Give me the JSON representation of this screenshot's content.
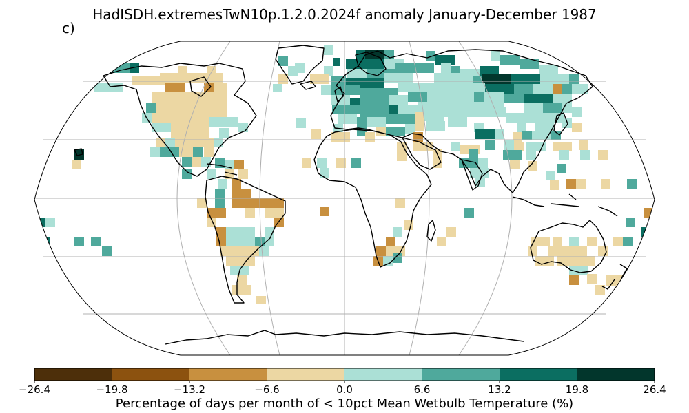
{
  "title": "HadISDH.extremesTwN10p.1.2.0.2024f anomaly January-December 1987",
  "panel_label": "c)",
  "colorbar": {
    "label": "Percentage of days per month of < 10pct Mean Wetbulb Temperature (%)",
    "ticks": [
      "−26.4",
      "−19.8",
      "−13.2",
      "−6.6",
      "0.0",
      "6.6",
      "13.2",
      "19.8",
      "26.4"
    ],
    "colors": [
      "#4d2f0a",
      "#8c520f",
      "#c8903f",
      "#ecd7a3",
      "#abe0d6",
      "#4fa99c",
      "#0b6e61",
      "#02362c"
    ]
  },
  "map": {
    "projection": "Robinson",
    "gridlines": true,
    "cell_colors": {
      "brown_dark": "#c8903f",
      "brown_light": "#ecd7a3",
      "teal_light": "#abe0d6",
      "teal_mid": "#4fa99c",
      "teal_dark": "#0b6e61",
      "teal_darkest": "#02362c"
    }
  }
}
